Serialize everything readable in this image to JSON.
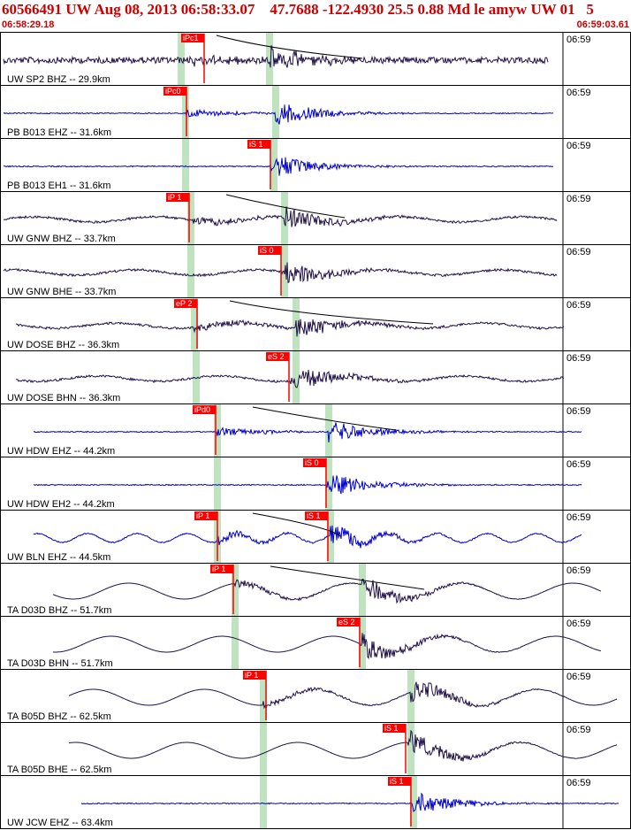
{
  "header": {
    "title": "60566491 UW Aug 08, 2013 06:58:33.07    47.7688 -122.4930 25.5 0.88 Md le amyw UW 01   5",
    "start_time": "06:58:29.18",
    "end_time": "06:59:03.61"
  },
  "colors": {
    "header_text": "#cc0000",
    "trace_short_period": "#20104a",
    "trace_blue": "#0000cc",
    "pick_flag": "#ff0000",
    "pick_band": "#bfe3bf",
    "coda_curve": "#000000"
  },
  "time_tick_label": "06:59",
  "panels": [
    {
      "label": "UW SP2 BHZ -- 29.9km",
      "color": "short-period",
      "pick": "iPc1",
      "pick_kind": "P"
    },
    {
      "label": "PB B013 EHZ -- 31.6km",
      "color": "blue",
      "pick": "iPc0",
      "pick_kind": "P"
    },
    {
      "label": "PB B013 EH1 -- 31.6km",
      "color": "blue",
      "pick": "iS 1",
      "pick_kind": "S"
    },
    {
      "label": "UW GNW BHZ -- 33.7km",
      "color": "short-period",
      "pick": "iP 1",
      "pick_kind": "P"
    },
    {
      "label": "UW GNW BHE -- 33.7km",
      "color": "short-period",
      "pick": "iS 0",
      "pick_kind": "S"
    },
    {
      "label": "UW DOSE BHZ -- 36.3km",
      "color": "short-period",
      "pick": "eP 2",
      "pick_kind": "P"
    },
    {
      "label": "UW DOSE BHN -- 36.3km",
      "color": "short-period",
      "pick": "eS 2",
      "pick_kind": "S"
    },
    {
      "label": "UW HDW EHZ -- 44.2km",
      "color": "blue",
      "pick": "iPd0",
      "pick_kind": "P"
    },
    {
      "label": "UW HDW EH2 -- 44.2km",
      "color": "blue",
      "pick": "iS 0",
      "pick_kind": "S"
    },
    {
      "label": "UW BLN EHZ -- 44.5km",
      "color": "blue",
      "pick": "iP 1",
      "pick_kind": "P",
      "pick2": "iS 1"
    },
    {
      "label": "TA D03D BHZ -- 51.7km",
      "color": "short-period",
      "pick": "iP 1",
      "pick_kind": "P"
    },
    {
      "label": "TA D03D BHN -- 51.7km",
      "color": "short-period",
      "pick": "eS 2",
      "pick_kind": "S"
    },
    {
      "label": "TA B05D BHZ -- 62.5km",
      "color": "short-period",
      "pick": "iP 1",
      "pick_kind": "P"
    },
    {
      "label": "TA B05D BHE -- 62.5km",
      "color": "short-period",
      "pick": "iS 1",
      "pick_kind": "S"
    },
    {
      "label": "UW JCW EHZ -- 63.4km",
      "color": "blue",
      "pick": "iS 1",
      "pick_kind": "S"
    }
  ]
}
